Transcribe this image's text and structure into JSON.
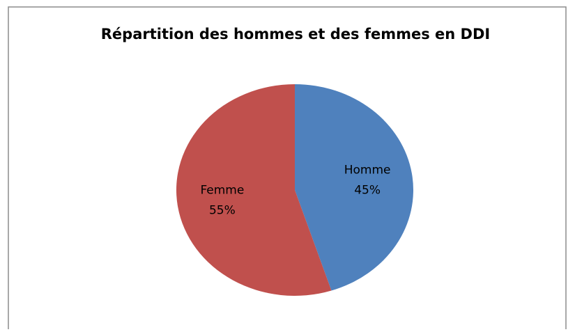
{
  "chart_data": {
    "type": "pie",
    "title": "Répartition des hommes et des femmes en DDI",
    "categories": [
      "Homme",
      "Femme"
    ],
    "values": [
      45,
      55
    ],
    "value_labels": [
      "45%",
      "55%"
    ],
    "colors": [
      "#4f81bd",
      "#c0504d"
    ]
  }
}
